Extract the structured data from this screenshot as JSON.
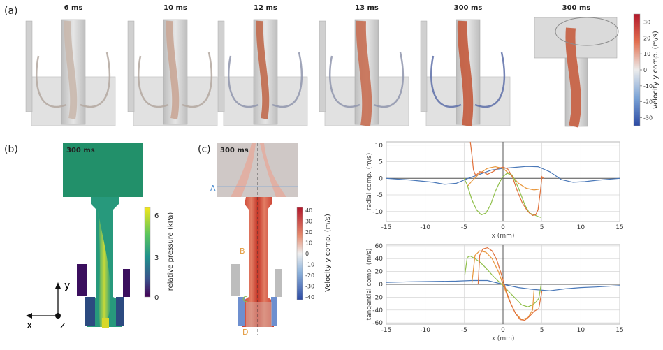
{
  "panels": {
    "a": "(a)",
    "b": "(b)",
    "c": "(c)"
  },
  "top_row": {
    "times": [
      "6 ms",
      "10 ms",
      "12 ms",
      "13 ms",
      "300 ms",
      "300 ms"
    ],
    "colorbar": {
      "label": "velocity y comp. (m/s)",
      "ticks": [
        "30",
        "20",
        "10",
        "0",
        "-10",
        "-20",
        "-30"
      ],
      "min": -35,
      "max": 35
    }
  },
  "pressure_panel": {
    "time": "300 ms",
    "colorbar": {
      "label": "relative pressure (kPa)",
      "ticks": [
        "6",
        "3",
        "0"
      ]
    },
    "axes": {
      "y": "y",
      "x": "x",
      "z": "z"
    }
  },
  "velocity_panel": {
    "time": "300 ms",
    "colorbar": {
      "label": "Velocity y comp. (m/s)",
      "ticks": [
        "40",
        "30",
        "20",
        "10",
        "0",
        "-10",
        "-20",
        "-30",
        "-40"
      ]
    },
    "markers": [
      "A",
      "B",
      "C",
      "D"
    ]
  },
  "colors": {
    "blue": "#4a78b8",
    "orange": "#e8963a",
    "green": "#8fbf4a",
    "red": "#e0703a",
    "pressure_top": "#22906a",
    "velocity_red": "#c83a2c"
  },
  "chart_data": [
    {
      "type": "line",
      "xlabel": "x (mm)",
      "ylabel": "radial comp. (m/s)",
      "xlim": [
        -15,
        15
      ],
      "ylim": [
        -13,
        11
      ],
      "xticks": [
        -15,
        -10,
        -5,
        0,
        5,
        10,
        15
      ],
      "yticks": [
        10,
        5,
        0,
        -5,
        -10
      ],
      "grid": true,
      "series": [
        {
          "color": "#4a78b8",
          "x": [
            -15,
            -12,
            -9,
            -7.5,
            -6,
            -4.5,
            -3,
            -1.5,
            0,
            1.5,
            3,
            4.5,
            5,
            6,
            7.5,
            9,
            10.5,
            12,
            13.5,
            15
          ],
          "y": [
            0,
            -0.5,
            -1.2,
            -1.8,
            -1.5,
            0,
            1.2,
            2.5,
            3.0,
            3.3,
            3.6,
            3.5,
            3.0,
            2.0,
            -0.4,
            -1.2,
            -1.0,
            -0.6,
            -0.3,
            0
          ]
        },
        {
          "color": "#e8963a",
          "x": [
            -4.6,
            -4,
            -3,
            -2,
            -1,
            0,
            1,
            2,
            3,
            4,
            4.6
          ],
          "y": [
            -2.5,
            -0.8,
            1.5,
            3.0,
            3.5,
            3.0,
            1.0,
            -1.5,
            -3.0,
            -3.5,
            -3.3
          ]
        },
        {
          "color": "#8fbf4a",
          "x": [
            -5.0,
            -4.6,
            -4.0,
            -3.4,
            -2.8,
            -2.2,
            -1.6,
            -1.0,
            -0.4,
            0,
            0.5,
            1.2,
            2.0,
            2.8,
            3.4,
            4.0,
            4.5,
            4.9
          ],
          "y": [
            0,
            -2.0,
            -6.5,
            -9.5,
            -11.0,
            -10.5,
            -8.0,
            -4.0,
            -1.0,
            0.5,
            1.5,
            1.0,
            -3.0,
            -8.0,
            -10.5,
            -11.0,
            -11.5,
            -11.8
          ]
        },
        {
          "color": "#e0703a",
          "x": [
            -4.2,
            -4.0,
            -3.8,
            -3.5,
            -3.0,
            -2.5,
            -2.0,
            -1.3,
            -0.6,
            0,
            0.6,
            1.2,
            1.8,
            2.5,
            3.2,
            3.8,
            4.2,
            4.5,
            4.8,
            5.0,
            5.2
          ],
          "y": [
            11.0,
            7.0,
            2.5,
            0.8,
            2.0,
            1.8,
            1.2,
            2.0,
            3.0,
            3.4,
            2.8,
            0.5,
            -3.5,
            -7.5,
            -10.0,
            -11.2,
            -11.0,
            -9.5,
            -4.0,
            0.5,
            0
          ]
        }
      ]
    },
    {
      "type": "line",
      "xlabel": "x (mm)",
      "ylabel": "tangential comp. (m/s)",
      "xlim": [
        -15,
        15
      ],
      "ylim": [
        -62,
        62
      ],
      "xticks": [
        -15,
        -10,
        -5,
        0,
        5,
        10,
        15
      ],
      "yticks": [
        60,
        40,
        20,
        0,
        -20,
        -40,
        -60
      ],
      "grid": true,
      "series": [
        {
          "color": "#4a78b8",
          "x": [
            -15,
            -12,
            -9,
            -6,
            -4,
            -2,
            0,
            2,
            4,
            6,
            8,
            10,
            12,
            15
          ],
          "y": [
            3,
            4,
            4.5,
            5,
            6,
            6,
            0,
            -5,
            -8,
            -10,
            -7,
            -5,
            -4,
            -2
          ]
        },
        {
          "color": "#8fbf4a",
          "x": [
            -4.9,
            -4.6,
            -4.2,
            -3.6,
            -3.0,
            -2.4,
            -1.8,
            -1.2,
            -0.6,
            0,
            0.8,
            1.6,
            2.4,
            3.2,
            3.8,
            4.2,
            4.6,
            4.9
          ],
          "y": [
            15,
            42,
            44,
            40,
            35,
            28,
            20,
            12,
            5,
            -2,
            -12,
            -22,
            -32,
            -35,
            -32,
            -28,
            -22,
            0
          ]
        },
        {
          "color": "#e8963a",
          "x": [
            -4.0,
            -3.6,
            -3.0,
            -2.2,
            -1.4,
            -0.6,
            0,
            0.8,
            1.6,
            2.4,
            3.2,
            3.8,
            4.0
          ],
          "y": [
            2,
            45,
            52,
            50,
            40,
            20,
            0,
            -25,
            -45,
            -55,
            -52,
            -40,
            -8
          ]
        },
        {
          "color": "#e0703a",
          "x": [
            -3.2,
            -3.0,
            -2.6,
            -2.0,
            -1.4,
            -0.8,
            -0.2,
            0.4,
            1.0,
            1.6,
            2.2,
            2.8,
            3.4,
            4.0,
            4.6,
            5.0
          ],
          "y": [
            0,
            45,
            55,
            57,
            52,
            38,
            15,
            -10,
            -30,
            -45,
            -55,
            -56,
            -50,
            -42,
            -38,
            -10
          ]
        }
      ]
    }
  ]
}
